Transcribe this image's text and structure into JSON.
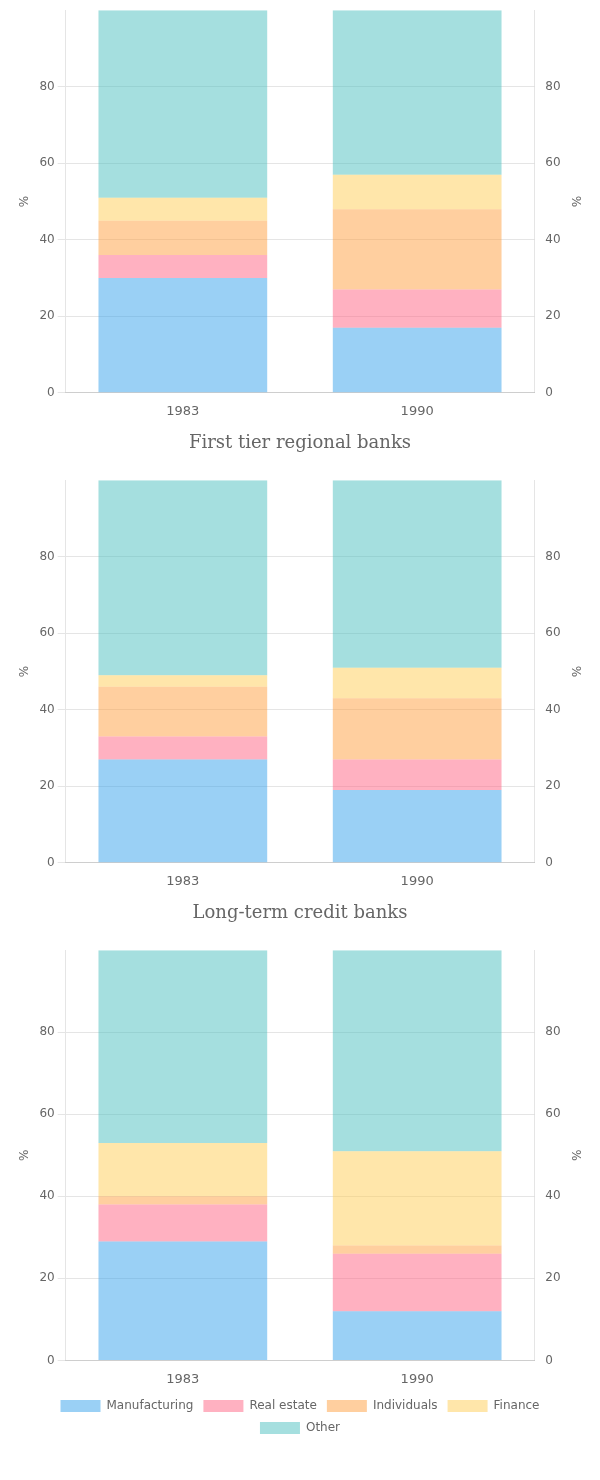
{
  "chart_data": [
    {
      "type": "bar",
      "title": "First tier regional banks",
      "categories": [
        "1983",
        "1990"
      ],
      "series": [
        {
          "name": "Manufacturing",
          "values": [
            30,
            17
          ]
        },
        {
          "name": "Real estate",
          "values": [
            6,
            10
          ]
        },
        {
          "name": "Individuals",
          "values": [
            9,
            21
          ]
        },
        {
          "name": "Finance",
          "values": [
            6,
            9
          ]
        },
        {
          "name": "Other",
          "values": [
            49,
            43
          ]
        }
      ],
      "stacked": true,
      "ylabel": "%",
      "ylim": [
        0,
        100
      ],
      "yticks": [
        0,
        20,
        40,
        60,
        80
      ],
      "y2label": "%",
      "y2lim": [
        0,
        100
      ],
      "y2ticks": [
        0,
        20,
        40,
        60,
        80
      ],
      "grid": true
    },
    {
      "type": "bar",
      "title": "Long-term credit banks",
      "categories": [
        "1983",
        "1990"
      ],
      "series": [
        {
          "name": "Manufacturing",
          "values": [
            27,
            19
          ]
        },
        {
          "name": "Real estate",
          "values": [
            6,
            8
          ]
        },
        {
          "name": "Individuals",
          "values": [
            13,
            16
          ]
        },
        {
          "name": "Finance",
          "values": [
            3,
            8
          ]
        },
        {
          "name": "Other",
          "values": [
            51,
            49
          ]
        }
      ],
      "stacked": true,
      "ylabel": "%",
      "ylim": [
        0,
        100
      ],
      "yticks": [
        0,
        20,
        40,
        60,
        80
      ],
      "y2label": "%",
      "y2lim": [
        0,
        100
      ],
      "y2ticks": [
        0,
        20,
        40,
        60,
        80
      ],
      "grid": true
    },
    {
      "type": "bar",
      "categories": [
        "1983",
        "1990"
      ],
      "series": [
        {
          "name": "Manufacturing",
          "values": [
            29,
            12
          ]
        },
        {
          "name": "Real estate",
          "values": [
            9,
            14
          ]
        },
        {
          "name": "Individuals",
          "values": [
            2,
            2
          ]
        },
        {
          "name": "Finance",
          "values": [
            13,
            23
          ]
        },
        {
          "name": "Other",
          "values": [
            47,
            49
          ]
        }
      ],
      "stacked": true,
      "ylabel": "%",
      "ylim": [
        0,
        100
      ],
      "yticks": [
        0,
        20,
        40,
        60,
        80
      ],
      "y2label": "%",
      "y2lim": [
        0,
        100
      ],
      "y2ticks": [
        0,
        20,
        40,
        60,
        80
      ],
      "grid": true,
      "legend": "bottom"
    }
  ]
}
